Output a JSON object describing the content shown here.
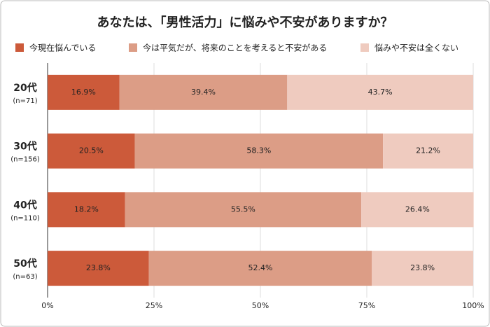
{
  "chart_data": {
    "type": "stacked-barh",
    "title": "あなたは、「男性活力」に悩みや不安がありますか？",
    "categories": [
      "20代",
      "30代",
      "40代",
      "50代"
    ],
    "sample_sizes": [
      "(n=71)",
      "(n=156)",
      "(n=110)",
      "(n=63)"
    ],
    "series": [
      {
        "name": "今現在悩んでいる",
        "color": "#cc5a3a",
        "values": [
          16.9,
          20.5,
          18.2,
          23.8
        ],
        "value_labels": [
          "16.9%",
          "20.5%",
          "18.2%",
          "23.8%"
        ]
      },
      {
        "name": "今は平気だが、将来のことを考えると不安がある",
        "color": "#dc9d86",
        "values": [
          39.4,
          58.3,
          55.5,
          52.4
        ],
        "value_labels": [
          "39.4%",
          "58.3%",
          "55.5%",
          "52.4%"
        ]
      },
      {
        "name": "悩みや不安は全くない",
        "color": "#efcbbf",
        "values": [
          43.7,
          21.2,
          26.4,
          23.8
        ],
        "value_labels": [
          "43.7%",
          "21.2%",
          "26.4%",
          "23.8%"
        ]
      }
    ],
    "xlim": [
      0,
      100
    ],
    "xticks": [
      {
        "value": 0,
        "label": "0%"
      },
      {
        "value": 25,
        "label": "25%"
      },
      {
        "value": 50,
        "label": "50%"
      },
      {
        "value": 75,
        "label": "75%"
      },
      {
        "value": 100,
        "label": "100%"
      }
    ],
    "grid": true
  }
}
